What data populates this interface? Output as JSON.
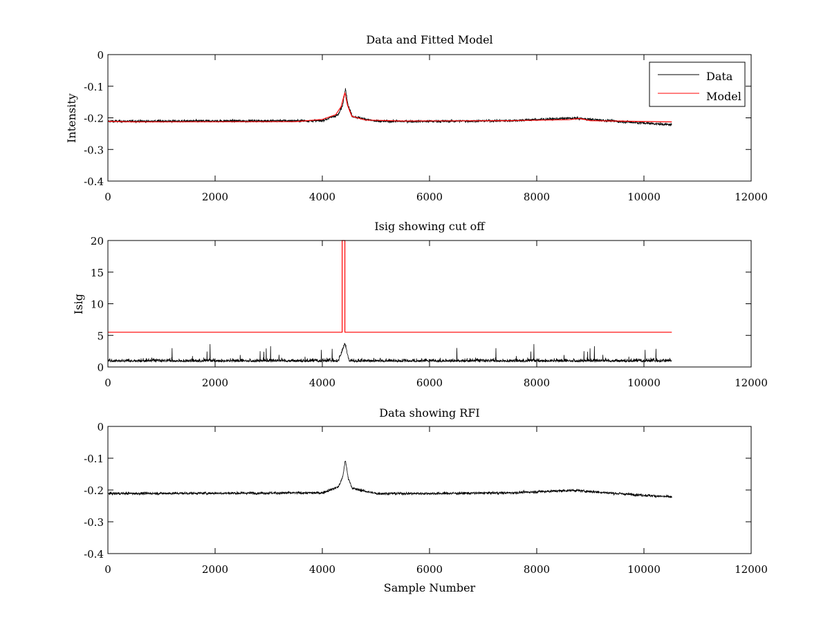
{
  "colors": {
    "data": "#000000",
    "model": "#ff0000",
    "axes": "#000000",
    "background": "#ffffff"
  },
  "chart_data": [
    {
      "type": "line",
      "title": "Data and Fitted Model",
      "xlabel": "",
      "ylabel": "Intensity",
      "xlim": [
        0,
        12000
      ],
      "ylim": [
        -0.4,
        0
      ],
      "xticks": [
        0,
        2000,
        4000,
        6000,
        8000,
        10000,
        12000
      ],
      "yticks": [
        -0.4,
        -0.3,
        -0.2,
        -0.1,
        0
      ],
      "xtick_labels": [
        "0",
        "2000",
        "4000",
        "6000",
        "8000",
        "10000",
        "12000"
      ],
      "ytick_labels": [
        "-0.4",
        "-0.3",
        "-0.2",
        "-0.1",
        "0"
      ],
      "grid": false,
      "legend": {
        "placement": "top-right",
        "entries": [
          "Data",
          "Model"
        ]
      },
      "series": [
        {
          "name": "Data",
          "kind": "noisy",
          "x_range": [
            0,
            10520
          ],
          "baseline": [
            [
              0,
              -0.211
            ],
            [
              4000,
              -0.209
            ],
            [
              4300,
              -0.19
            ],
            [
              4380,
              -0.16
            ],
            [
              4430,
              -0.105
            ],
            [
              4480,
              -0.16
            ],
            [
              4560,
              -0.195
            ],
            [
              5000,
              -0.211
            ],
            [
              6000,
              -0.211
            ],
            [
              7500,
              -0.209
            ],
            [
              8200,
              -0.204
            ],
            [
              8700,
              -0.201
            ],
            [
              9500,
              -0.211
            ],
            [
              10520,
              -0.222
            ]
          ],
          "noise_amplitude": 0.02
        },
        {
          "name": "Model",
          "kind": "smooth",
          "points": [
            [
              0,
              -0.211
            ],
            [
              500,
              -0.213
            ],
            [
              3500,
              -0.212
            ],
            [
              4000,
              -0.205
            ],
            [
              4250,
              -0.19
            ],
            [
              4350,
              -0.165
            ],
            [
              4420,
              -0.12
            ],
            [
              4470,
              -0.16
            ],
            [
              4550,
              -0.195
            ],
            [
              4800,
              -0.207
            ],
            [
              5500,
              -0.21
            ],
            [
              7500,
              -0.209
            ],
            [
              8600,
              -0.206
            ],
            [
              8800,
              -0.202
            ],
            [
              9000,
              -0.209
            ],
            [
              10520,
              -0.213
            ]
          ]
        }
      ]
    },
    {
      "type": "line",
      "title": "Isig showing cut off",
      "xlabel": "",
      "ylabel": "Isig",
      "xlim": [
        0,
        12000
      ],
      "ylim": [
        0,
        20
      ],
      "xticks": [
        0,
        2000,
        4000,
        6000,
        8000,
        10000,
        12000
      ],
      "yticks": [
        0,
        5,
        10,
        15,
        20
      ],
      "xtick_labels": [
        "0",
        "2000",
        "4000",
        "6000",
        "8000",
        "10000",
        "12000"
      ],
      "ytick_labels": [
        "0",
        "5",
        "10",
        "15",
        "20"
      ],
      "grid": false,
      "series": [
        {
          "kind": "noisy-positive",
          "x_range": [
            0,
            10520
          ],
          "baseline": [
            [
              0,
              0.8
            ],
            [
              4300,
              0.8
            ],
            [
              4420,
              3.5
            ],
            [
              4500,
              0.8
            ],
            [
              10520,
              0.8
            ]
          ],
          "noise_amplitude": 3.0
        },
        {
          "kind": "smooth",
          "points": [
            [
              0,
              5.5
            ],
            [
              4370,
              5.5
            ],
            [
              4370,
              20
            ],
            [
              4420,
              20
            ],
            [
              4420,
              5.5
            ],
            [
              10520,
              5.5
            ]
          ]
        }
      ]
    },
    {
      "type": "line",
      "title": "Data showing RFI",
      "xlabel": "Sample Number",
      "ylabel": "",
      "xlim": [
        0,
        12000
      ],
      "ylim": [
        -0.4,
        0
      ],
      "xticks": [
        0,
        2000,
        4000,
        6000,
        8000,
        10000,
        12000
      ],
      "yticks": [
        -0.4,
        -0.3,
        -0.2,
        -0.1,
        0
      ],
      "xtick_labels": [
        "0",
        "2000",
        "4000",
        "6000",
        "8000",
        "10000",
        "12000"
      ],
      "ytick_labels": [
        "-0.4",
        "-0.3",
        "-0.2",
        "-0.1",
        "0"
      ],
      "grid": false,
      "series": [
        {
          "kind": "noisy",
          "x_range": [
            0,
            10520
          ],
          "baseline": [
            [
              0,
              -0.211
            ],
            [
              4000,
              -0.209
            ],
            [
              4300,
              -0.19
            ],
            [
              4380,
              -0.16
            ],
            [
              4430,
              -0.105
            ],
            [
              4480,
              -0.16
            ],
            [
              4560,
              -0.195
            ],
            [
              5000,
              -0.211
            ],
            [
              6000,
              -0.211
            ],
            [
              7500,
              -0.209
            ],
            [
              8200,
              -0.204
            ],
            [
              8700,
              -0.201
            ],
            [
              9500,
              -0.211
            ],
            [
              10520,
              -0.222
            ]
          ],
          "noise_amplitude": 0.02
        }
      ]
    }
  ]
}
